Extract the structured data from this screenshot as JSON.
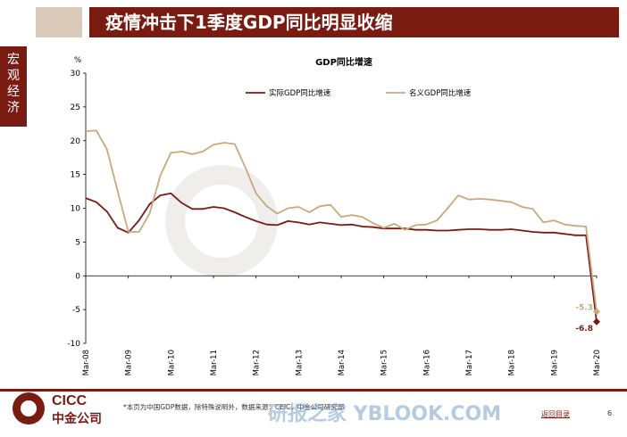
{
  "header": {
    "title": "疫情冲击下1季度GDP同比明显收缩"
  },
  "sidebar": {
    "label": "宏观经济"
  },
  "footer": {
    "note": "*本页为中国GDP数据，除特殊说明外，数据来源：CEIC，中金公司研究部",
    "back_link": "返回目录",
    "page_number": "6"
  },
  "logo": {
    "line1": "CICC",
    "line2": "中金公司"
  },
  "watermark": {
    "text": "研报之家 YBLOOK.COM"
  },
  "colors": {
    "brand": "#7a1b12",
    "real": "#7a1b12",
    "nominal": "#c8a97e"
  },
  "chart_data": {
    "type": "line",
    "title": "GDP同比增速",
    "ylabel": "%",
    "ylim": [
      -10,
      30
    ],
    "yticks": [
      30,
      25,
      20,
      15,
      10,
      5,
      0,
      -5,
      -10
    ],
    "xticks": [
      "Mar-08",
      "Mar-09",
      "Mar-10",
      "Mar-11",
      "Mar-12",
      "Mar-13",
      "Mar-14",
      "Mar-15",
      "Mar-16",
      "Mar-17",
      "Mar-18",
      "Mar-19",
      "Mar-20"
    ],
    "legend_position": "top",
    "series": [
      {
        "name": "实际GDP同比增速",
        "color": "#7a1b12",
        "values": [
          11.5,
          10.9,
          9.5,
          7.1,
          6.4,
          8.2,
          10.6,
          11.9,
          12.2,
          10.8,
          9.9,
          9.9,
          10.2,
          10.0,
          9.4,
          8.7,
          8.1,
          7.6,
          7.5,
          8.1,
          7.9,
          7.6,
          7.9,
          7.7,
          7.5,
          7.6,
          7.3,
          7.2,
          7.0,
          7.0,
          7.0,
          6.8,
          6.8,
          6.7,
          6.7,
          6.8,
          6.9,
          6.9,
          6.8,
          6.8,
          6.9,
          6.7,
          6.5,
          6.4,
          6.4,
          6.2,
          6.0,
          6.0,
          -6.8
        ],
        "end_label": "-6.8"
      },
      {
        "name": "名义GDP同比增速",
        "color": "#c8a97e",
        "values": [
          21.4,
          21.5,
          18.7,
          12.5,
          6.5,
          6.5,
          9.2,
          14.8,
          18.2,
          18.4,
          18.0,
          18.4,
          19.4,
          19.7,
          19.5,
          16.0,
          12.2,
          10.3,
          9.2,
          10.0,
          10.2,
          9.4,
          10.3,
          10.5,
          8.7,
          9.0,
          8.7,
          7.8,
          7.1,
          7.7,
          6.8,
          7.5,
          7.6,
          8.2,
          10.0,
          11.9,
          11.3,
          11.4,
          11.3,
          11.1,
          10.9,
          10.2,
          9.9,
          7.9,
          8.2,
          7.6,
          7.4,
          7.3,
          -5.3
        ],
        "end_label": "-5.3"
      }
    ]
  }
}
